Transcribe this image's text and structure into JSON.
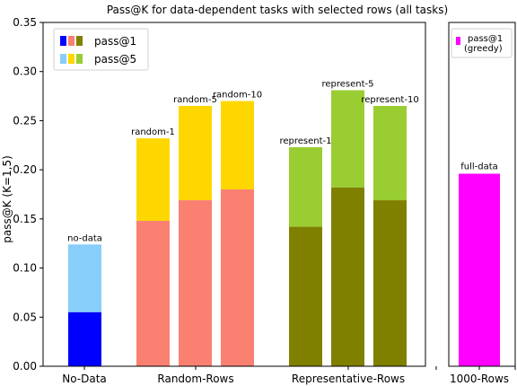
{
  "chart_data": {
    "type": "bar",
    "title": "Pass@K for data-dependent tasks with selected rows (all tasks)",
    "ylabel": "pass@K (K=1,5)",
    "ylim": [
      0,
      0.35
    ],
    "yticks": [
      "0.00",
      "0.05",
      "0.10",
      "0.15",
      "0.20",
      "0.25",
      "0.30",
      "0.35"
    ],
    "grid": false,
    "groups": [
      "No-Data",
      "Random-Rows",
      "Representative-Rows"
    ],
    "bars": [
      {
        "label": "no-data",
        "group": "No-Data",
        "pass1": 0.055,
        "pass5": 0.124,
        "color1": "#0000ff",
        "color5": "#87cefa"
      },
      {
        "label": "random-1",
        "group": "Random-Rows",
        "pass1": 0.148,
        "pass5": 0.232,
        "color1": "#fa8072",
        "color5": "#ffd700"
      },
      {
        "label": "random-5",
        "group": "Random-Rows",
        "pass1": 0.169,
        "pass5": 0.265,
        "color1": "#fa8072",
        "color5": "#ffd700"
      },
      {
        "label": "random-10",
        "group": "Random-Rows",
        "pass1": 0.18,
        "pass5": 0.27,
        "color1": "#fa8072",
        "color5": "#ffd700"
      },
      {
        "label": "represent-1",
        "group": "Representative-Rows",
        "pass1": 0.142,
        "pass5": 0.223,
        "color1": "#808000",
        "color5": "#9acd32"
      },
      {
        "label": "represent-5",
        "group": "Representative-Rows",
        "pass1": 0.182,
        "pass5": 0.281,
        "color1": "#808000",
        "color5": "#9acd32"
      },
      {
        "label": "represent-10",
        "group": "Representative-Rows",
        "pass1": 0.169,
        "pass5": 0.265,
        "color1": "#808000",
        "color5": "#9acd32"
      }
    ],
    "legend": {
      "placement": "top-left",
      "entries": [
        {
          "label": "pass@1",
          "colors": [
            "#0000ff",
            "#fa8072",
            "#808000"
          ]
        },
        {
          "label": "pass@5",
          "colors": [
            "#87cefa",
            "#ffd700",
            "#9acd32"
          ]
        }
      ]
    },
    "side_panel": {
      "group": "1000-Rows",
      "bar": {
        "label": "full-data",
        "value": 0.196,
        "color": "#ff00ff"
      },
      "legend": {
        "placement": "top",
        "label": "pass@1\n(greedy)",
        "color": "#ff00ff"
      }
    }
  }
}
